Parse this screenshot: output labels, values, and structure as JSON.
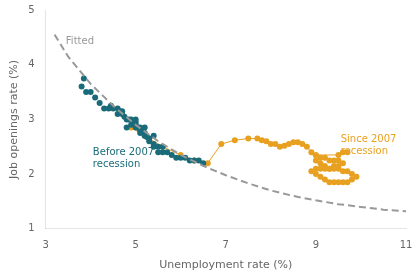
{
  "chart_data": {
    "type": "scatter",
    "xlabel": "Unemployment rate (%)",
    "ylabel": "Job openings rate (%)",
    "xlim": [
      3,
      11
    ],
    "ylim": [
      1,
      5
    ],
    "xticks": [
      3,
      5,
      7,
      9,
      11
    ],
    "yticks": [
      1,
      2,
      3,
      4,
      5
    ],
    "grid": false,
    "series": [
      {
        "type": "line",
        "line_style": "dashed",
        "marker": "none",
        "color": "#999999",
        "x": [
          3.2,
          3.5,
          4.0,
          4.5,
          5.0,
          5.5,
          6.0,
          6.5,
          7.0,
          7.5,
          8.0,
          8.5,
          9.0,
          9.5,
          10.0,
          10.5,
          11.0
        ],
        "values": [
          4.55,
          4.15,
          3.65,
          3.25,
          2.9,
          2.6,
          2.35,
          2.15,
          1.98,
          1.83,
          1.7,
          1.6,
          1.52,
          1.45,
          1.4,
          1.35,
          1.32
        ]
      },
      {
        "type": "scatter",
        "line_style": "none",
        "marker": "circle",
        "color": "#1a6b7a",
        "x": [
          3.8,
          3.85,
          3.9,
          4.0,
          4.1,
          4.2,
          4.3,
          4.4,
          4.45,
          4.5,
          4.6,
          4.65,
          4.7,
          4.75,
          4.8,
          4.85,
          4.9,
          4.9,
          4.95,
          5.0,
          5.0,
          5.0,
          5.05,
          5.1,
          5.1,
          5.1,
          5.15,
          5.2,
          5.2,
          5.25,
          5.3,
          5.3,
          5.4,
          5.4,
          5.5,
          5.5,
          5.6,
          5.7,
          5.8,
          5.9,
          6.0,
          6.1,
          6.2,
          6.3,
          6.4,
          6.5,
          4.6,
          4.7,
          4.8,
          5.0,
          5.2,
          5.4,
          5.6
        ],
        "values": [
          3.6,
          3.75,
          3.5,
          3.5,
          3.4,
          3.3,
          3.2,
          3.2,
          3.25,
          3.2,
          3.1,
          3.15,
          3.1,
          3.05,
          3.0,
          3.0,
          3.0,
          2.9,
          2.95,
          3.0,
          2.95,
          2.9,
          2.85,
          2.85,
          2.8,
          2.75,
          2.78,
          2.75,
          2.7,
          2.68,
          2.65,
          2.6,
          2.55,
          2.5,
          2.5,
          2.4,
          2.4,
          2.4,
          2.35,
          2.3,
          2.3,
          2.3,
          2.25,
          2.25,
          2.25,
          2.2,
          3.2,
          3.15,
          2.85,
          2.85,
          2.85,
          2.7,
          2.5
        ]
      },
      {
        "type": "line",
        "line_style": "solid",
        "marker": "circle",
        "color": "#e8a020",
        "x": [
          4.9,
          5.2,
          5.6,
          6.0,
          6.3,
          6.6,
          6.9,
          7.2,
          7.5,
          7.7,
          7.8,
          7.9,
          8.0,
          8.1,
          8.2,
          8.3,
          8.4,
          8.5,
          8.6,
          8.7,
          8.8,
          8.9,
          9.0,
          9.1,
          9.2,
          9.3,
          9.4,
          9.5,
          9.6,
          9.7,
          9.8,
          9.9,
          9.8,
          9.7,
          9.6,
          9.5,
          9.4,
          9.3,
          9.2,
          9.1,
          9.0,
          8.9,
          9.0,
          9.1,
          9.2,
          9.3,
          9.4,
          9.5,
          9.6,
          9.5,
          9.4,
          9.3,
          9.2,
          9.1,
          9.0,
          9.5,
          9.6,
          9.7
        ],
        "values": [
          2.85,
          2.7,
          2.5,
          2.35,
          2.25,
          2.2,
          2.55,
          2.62,
          2.65,
          2.65,
          2.62,
          2.6,
          2.55,
          2.55,
          2.5,
          2.52,
          2.55,
          2.58,
          2.58,
          2.55,
          2.5,
          2.4,
          2.25,
          2.2,
          2.15,
          2.1,
          2.1,
          2.1,
          2.05,
          2.05,
          2.0,
          1.95,
          1.9,
          1.85,
          1.85,
          1.85,
          1.85,
          1.85,
          1.9,
          1.95,
          2.0,
          2.05,
          2.1,
          2.1,
          2.1,
          2.1,
          2.15,
          2.15,
          2.2,
          2.25,
          2.25,
          2.25,
          2.3,
          2.3,
          2.35,
          2.35,
          2.4,
          2.4
        ]
      }
    ],
    "annotations": [
      {
        "text": "Fitted",
        "x": 3.45,
        "y": 4.52,
        "color": "#999999"
      },
      {
        "text": "Before 2007\nrecession",
        "x": 4.05,
        "y": 2.48,
        "color": "#1a6b7a"
      },
      {
        "text": "Since 2007\nrecession",
        "x": 9.55,
        "y": 2.72,
        "color": "#e8a020"
      }
    ]
  }
}
